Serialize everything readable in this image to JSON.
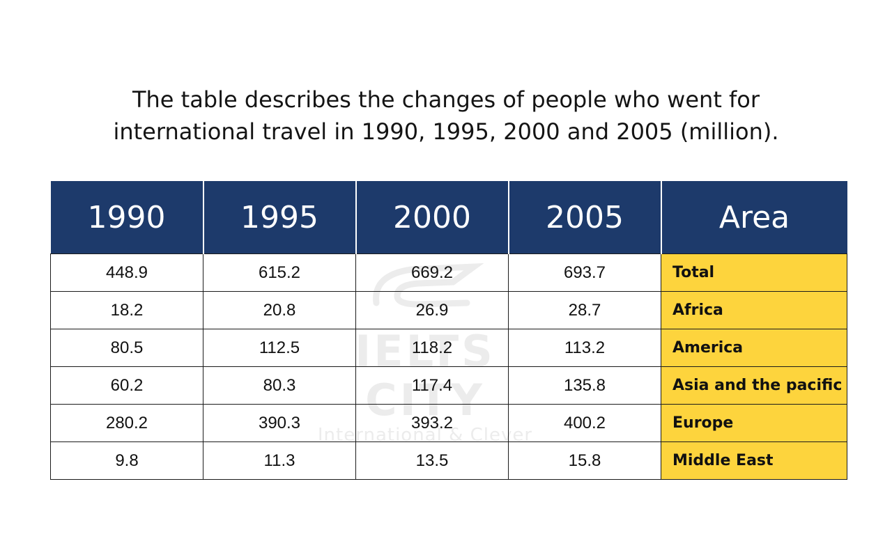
{
  "title": {
    "line1": "The table describes the changes of people who went for",
    "line2": "international travel in 1990, 1995, 2000 and 2005 (million)."
  },
  "watermark": {
    "brand": "IELTS CITY",
    "tagline": "International & Clever"
  },
  "colors": {
    "header_bg": "#1d3a6b",
    "area_bg": "#fdd43d",
    "border": "#1a1a1a"
  },
  "chart_data": {
    "type": "table",
    "title": "The table describes the changes of people who went for international travel in 1990, 1995, 2000 and 2005 (million).",
    "columns": [
      "1990",
      "1995",
      "2000",
      "2005",
      "Area"
    ],
    "rows": [
      {
        "values": [
          "448.9",
          "615.2",
          "669.2",
          "693.7"
        ],
        "area": "Total"
      },
      {
        "values": [
          "18.2",
          "20.8",
          "26.9",
          "28.7"
        ],
        "area": "Africa"
      },
      {
        "values": [
          "80.5",
          "112.5",
          "118.2",
          "113.2"
        ],
        "area": "America"
      },
      {
        "values": [
          "60.2",
          "80.3",
          "117.4",
          "135.8"
        ],
        "area": "Asia and the pacific"
      },
      {
        "values": [
          "280.2",
          "390.3",
          "393.2",
          "400.2"
        ],
        "area": "Europe"
      },
      {
        "values": [
          "9.8",
          "11.3",
          "13.5",
          "15.8"
        ],
        "area": "Middle East"
      }
    ]
  }
}
